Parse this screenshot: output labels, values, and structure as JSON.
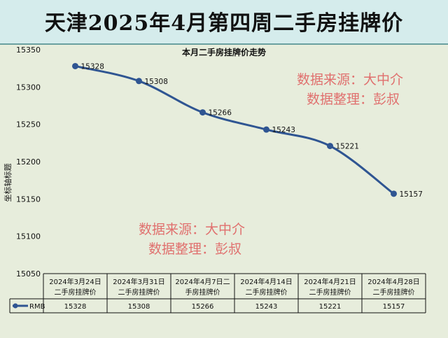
{
  "page_title": "天津2025年4月第四周二手房挂牌价",
  "watermark": {
    "line1": "数据来源：大中介",
    "line2": "数据整理：彭叔"
  },
  "colors": {
    "line": "#2f5592",
    "banner_bg": "#d5ecec",
    "plot_bg": "#e7eddc",
    "watermark": "#e0706e"
  },
  "chart_data": {
    "type": "line",
    "title": "本月二手房挂牌价走势",
    "ylabel": "坐标轴标题",
    "xlabel": "",
    "categories": [
      [
        "2024年3月24日",
        "二手房挂牌价"
      ],
      [
        "2024年3月31日",
        "二手房挂牌价"
      ],
      [
        "2024年4月7日二",
        "手房挂牌价"
      ],
      [
        "2024年4月14日",
        "二手房挂牌价"
      ],
      [
        "2024年4月21日",
        "二手房挂牌价"
      ],
      [
        "2024年4月28日",
        "二手房挂牌价"
      ]
    ],
    "series": [
      {
        "name": "RMB",
        "values": [
          15328,
          15308,
          15266,
          15243,
          15221,
          15157
        ]
      }
    ],
    "ylim": [
      15050,
      15350
    ],
    "yticks": [
      15050,
      15100,
      15150,
      15200,
      15250,
      15300,
      15350
    ],
    "grid": false,
    "legend": "data-table",
    "smooth": true
  }
}
